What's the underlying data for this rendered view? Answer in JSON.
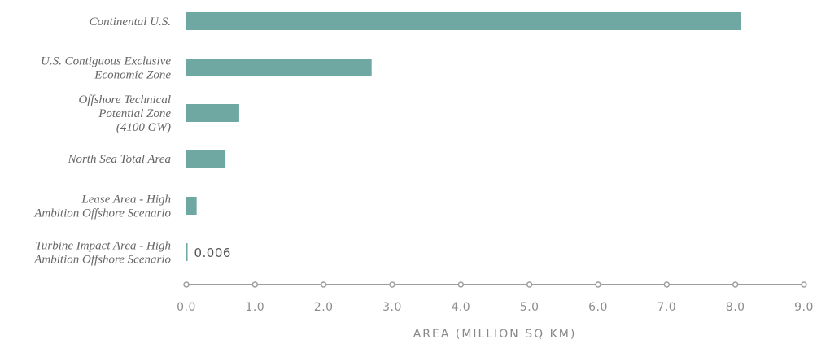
{
  "chart_data": {
    "type": "bar",
    "orientation": "horizontal",
    "categories": [
      [
        "Continental U.S."
      ],
      [
        "U.S. Contiguous Exclusive",
        "Economic Zone"
      ],
      [
        "Offshore Technical",
        "Potential Zone",
        "(4100 GW)"
      ],
      [
        "North Sea Total Area"
      ],
      [
        "Lease Area - High",
        "Ambition Offshore Scenario"
      ],
      [
        "Turbine Impact Area - High",
        "Ambition Offshore Scenario"
      ]
    ],
    "values": [
      8.08,
      2.7,
      0.77,
      0.57,
      0.15,
      0.006
    ],
    "data_labels": [
      {
        "index": 5,
        "text": "0.006"
      }
    ],
    "xlabel": "AREA (MILLION SQ KM)",
    "ylabel": "",
    "xlim": [
      0,
      9
    ],
    "xticks": [
      "0.0",
      "1.0",
      "2.0",
      "3.0",
      "4.0",
      "5.0",
      "6.0",
      "7.0",
      "8.0",
      "9.0"
    ],
    "grid": false,
    "colors": {
      "bar": "#6fa7a3",
      "axis": "#9e9e9e"
    }
  }
}
